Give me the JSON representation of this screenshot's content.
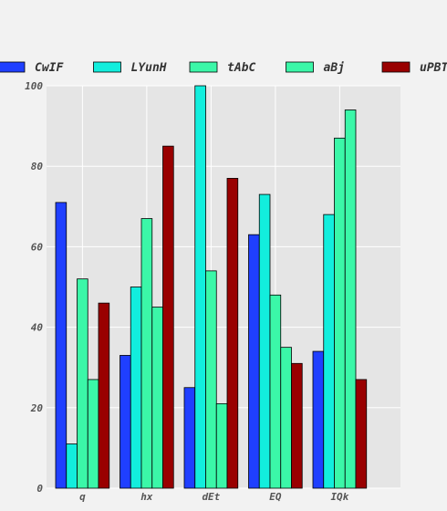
{
  "chart_data": {
    "type": "bar",
    "categories": [
      "q",
      "hx",
      "dEt",
      "EQ",
      "IQk"
    ],
    "series": [
      {
        "name": "CwIF",
        "color": "#1f3fff",
        "values": [
          71,
          33,
          25,
          63,
          34
        ]
      },
      {
        "name": "LYunH",
        "color": "#12eedd",
        "values": [
          11,
          50,
          100,
          73,
          68
        ]
      },
      {
        "name": "tAbC",
        "color": "#3bf7a8",
        "values": [
          52,
          67,
          54,
          48,
          87
        ]
      },
      {
        "name": "aBj",
        "color": "#3bf7a8",
        "values": [
          27,
          45,
          21,
          35,
          94
        ]
      },
      {
        "name": "uPBT",
        "color": "#990000",
        "values": [
          46,
          85,
          77,
          31,
          27
        ]
      }
    ],
    "ylim": [
      0,
      100
    ],
    "yticks": [
      0,
      20,
      40,
      60,
      80,
      100
    ],
    "grid": true,
    "legend_position": "top"
  }
}
